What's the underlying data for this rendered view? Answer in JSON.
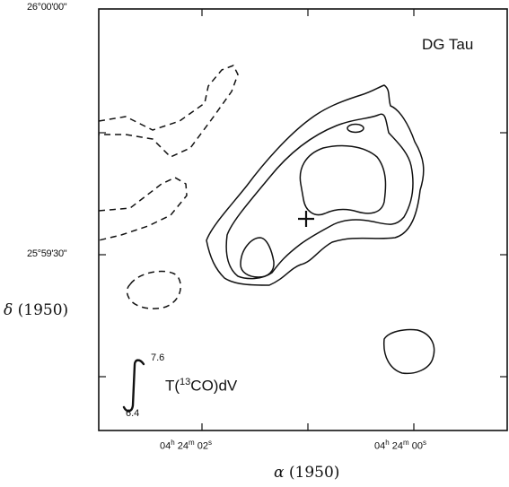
{
  "object_name": "DG Tau",
  "axes": {
    "x_title_symbol": "α",
    "x_title_epoch": "(1950)",
    "y_title_symbol": "δ",
    "y_title_epoch": "(1950)",
    "x_ticks": [
      {
        "h": "04",
        "hu": "h",
        "m": "24",
        "mu": "m",
        "s": "02",
        "su": "s"
      },
      {
        "h": "04",
        "hu": "h",
        "m": "24",
        "mu": "m",
        "s": "00",
        "su": "s"
      }
    ],
    "y_ticks": [
      "26°00'00\"",
      "25°59'30\""
    ]
  },
  "integral": {
    "upper": "7.6",
    "lower": "6.4",
    "pre": "T(",
    "sup": "13",
    "post": "CO)dV"
  },
  "markers": [
    {
      "name": "star-position",
      "symbol": "+"
    }
  ],
  "styles": {
    "line_color": "#111111",
    "background": "#ffffff"
  }
}
